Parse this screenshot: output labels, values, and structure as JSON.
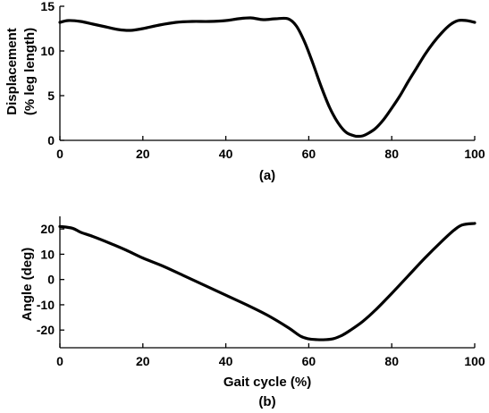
{
  "chart_data": [
    {
      "type": "line",
      "panel_label": "(a)",
      "ylabel_line1": "Displacement",
      "ylabel_line2": "(% leg length)",
      "xlabel": "",
      "xlim": [
        0,
        100
      ],
      "ylim": [
        0,
        15
      ],
      "xticks": [
        0,
        20,
        40,
        60,
        80,
        100
      ],
      "yticks": [
        0,
        5,
        10,
        15
      ],
      "grid": false,
      "series": [
        {
          "x": [
            0,
            2,
            5,
            8,
            11,
            14,
            17,
            20,
            24,
            28,
            32,
            36,
            40,
            43,
            46,
            49,
            52,
            55,
            57,
            59,
            61,
            63,
            65,
            67,
            69,
            71,
            72,
            73,
            74,
            76,
            78,
            80,
            82,
            84,
            86,
            88,
            90,
            92,
            94,
            96,
            98,
            100
          ],
          "y": [
            13.2,
            13.4,
            13.3,
            13.0,
            12.7,
            12.4,
            12.3,
            12.5,
            12.9,
            13.2,
            13.3,
            13.3,
            13.4,
            13.6,
            13.7,
            13.5,
            13.6,
            13.6,
            12.8,
            11.0,
            8.6,
            6.0,
            3.7,
            2.0,
            0.9,
            0.5,
            0.45,
            0.5,
            0.7,
            1.3,
            2.3,
            3.6,
            5.0,
            6.6,
            8.1,
            9.6,
            10.9,
            12.0,
            12.9,
            13.4,
            13.4,
            13.2
          ]
        }
      ]
    },
    {
      "type": "line",
      "panel_label": "(b)",
      "ylabel": "Angle (deg)",
      "xlabel": "Gait cycle (%)",
      "xlim": [
        0,
        100
      ],
      "ylim": [
        -27,
        25
      ],
      "xticks": [
        0,
        20,
        40,
        60,
        80,
        100
      ],
      "yticks": [
        20,
        10,
        0,
        -10,
        -20
      ],
      "grid": false,
      "series": [
        {
          "x": [
            0,
            3,
            5,
            8,
            12,
            16,
            20,
            25,
            30,
            35,
            40,
            45,
            50,
            55,
            58,
            60,
            62,
            64,
            66,
            68,
            70,
            73,
            76,
            80,
            84,
            88,
            92,
            95,
            97,
            100
          ],
          "y": [
            21.0,
            20.3,
            18.7,
            17.0,
            14.4,
            11.6,
            8.5,
            5.2,
            1.4,
            -2.4,
            -6.2,
            -10.0,
            -14.1,
            -19.0,
            -22.4,
            -23.5,
            -23.8,
            -23.8,
            -23.4,
            -22.1,
            -20.1,
            -16.6,
            -12.2,
            -5.5,
            1.5,
            8.5,
            15.0,
            19.5,
            21.6,
            22.2
          ]
        }
      ]
    }
  ]
}
